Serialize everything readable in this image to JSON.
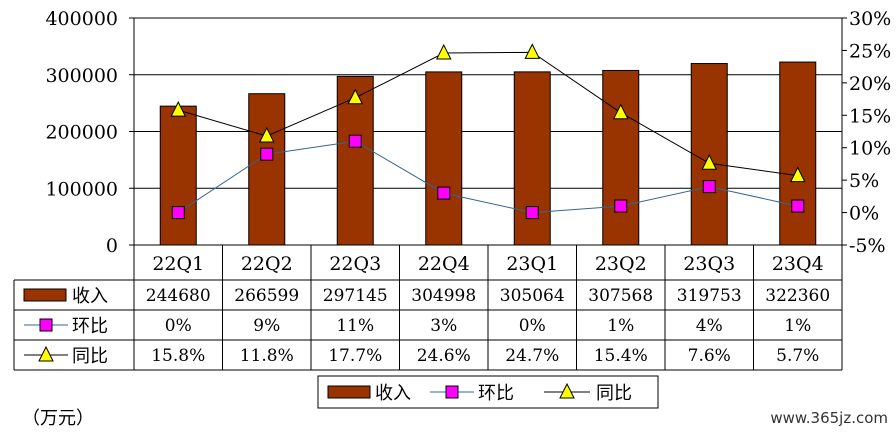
{
  "chart_data": {
    "type": "bar",
    "categories": [
      "22Q1",
      "22Q2",
      "22Q3",
      "22Q4",
      "23Q1",
      "23Q2",
      "23Q3",
      "23Q4"
    ],
    "series": [
      {
        "name": "收入",
        "kind": "bar",
        "axis": "left",
        "values": [
          244680,
          266599,
          297145,
          304998,
          305064,
          307568,
          319753,
          322360
        ],
        "labels": [
          "244680",
          "266599",
          "297145",
          "304998",
          "305064",
          "307568",
          "319753",
          "322360"
        ],
        "color": "#993300"
      },
      {
        "name": "环比",
        "kind": "line",
        "axis": "right",
        "marker": "square",
        "values": [
          0,
          9,
          11,
          3,
          0,
          1,
          4,
          1
        ],
        "labels": [
          "0%",
          "9%",
          "11%",
          "3%",
          "0%",
          "1%",
          "4%",
          "1%"
        ],
        "color": "#FF00FF",
        "line_color": "#336699"
      },
      {
        "name": "同比",
        "kind": "line",
        "axis": "right",
        "marker": "triangle",
        "values": [
          15.8,
          11.8,
          17.7,
          24.6,
          24.7,
          15.4,
          7.6,
          5.7
        ],
        "labels": [
          "15.8%",
          "11.8%",
          "17.7%",
          "24.6%",
          "24.7%",
          "15.4%",
          "7.6%",
          "5.7%"
        ],
        "color": "#FFFF00",
        "line_color": "#000000"
      }
    ],
    "left_axis": {
      "min": 0,
      "max": 400000,
      "step": 100000,
      "ticks": [
        "0",
        "100000",
        "200000",
        "300000",
        "400000"
      ]
    },
    "right_axis": {
      "min": -5,
      "max": 30,
      "step": 5,
      "ticks": [
        "-5%",
        "0%",
        "5%",
        "10%",
        "15%",
        "20%",
        "25%",
        "30%"
      ]
    },
    "grid": true,
    "legend": "bottom",
    "data_table": true
  },
  "unit_label": "（万元）",
  "watermark": "www.365jz.com"
}
